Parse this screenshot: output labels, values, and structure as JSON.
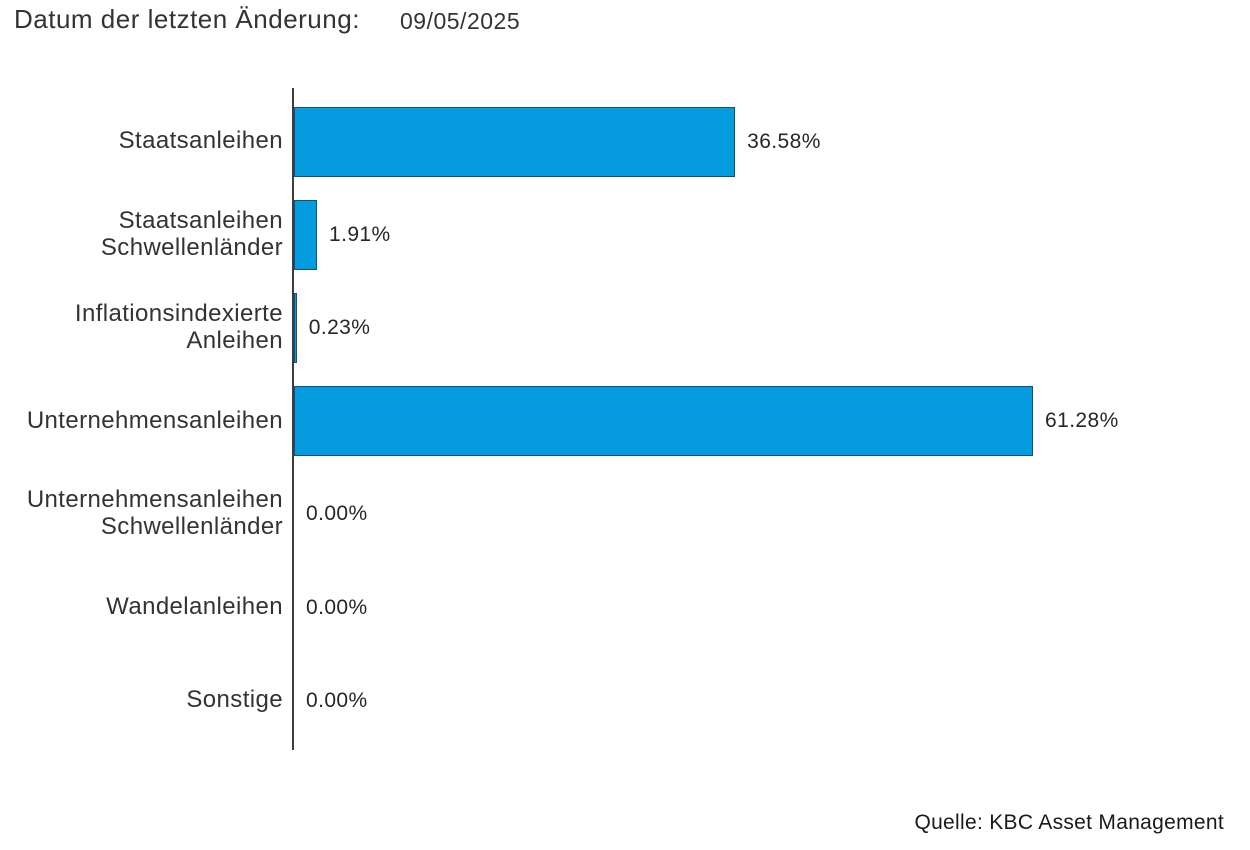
{
  "header": {
    "label": "Datum der letzten Änderung:",
    "date": "09/05/2025"
  },
  "footer": {
    "source": "Quelle: KBC Asset Management"
  },
  "chart_data": {
    "type": "bar",
    "orientation": "horizontal",
    "title": "",
    "xlabel": "",
    "ylabel": "",
    "categories": [
      "Staatsanleihen",
      "Staatsanleihen Schwellenländer",
      "Inflationsindexierte Anleihen",
      "Unternehmensanleihen",
      "Unternehmensanleihen Schwellenländer",
      "Wandelanleihen",
      "Sonstige"
    ],
    "values": [
      36.58,
      1.91,
      0.23,
      61.28,
      0.0,
      0.0,
      0.0
    ],
    "value_labels": [
      "36.58%",
      "1.91%",
      "0.23%",
      "61.28%",
      "0.00%",
      "0.00%",
      "0.00%"
    ],
    "xlim": [
      0,
      79
    ],
    "grid": false,
    "legend": false,
    "bar_color": "#049cdf",
    "bar_border_color": "#1b4f72",
    "axis_color": "#3d3d3d",
    "label_color": "#333333",
    "value_color": "#262626"
  }
}
